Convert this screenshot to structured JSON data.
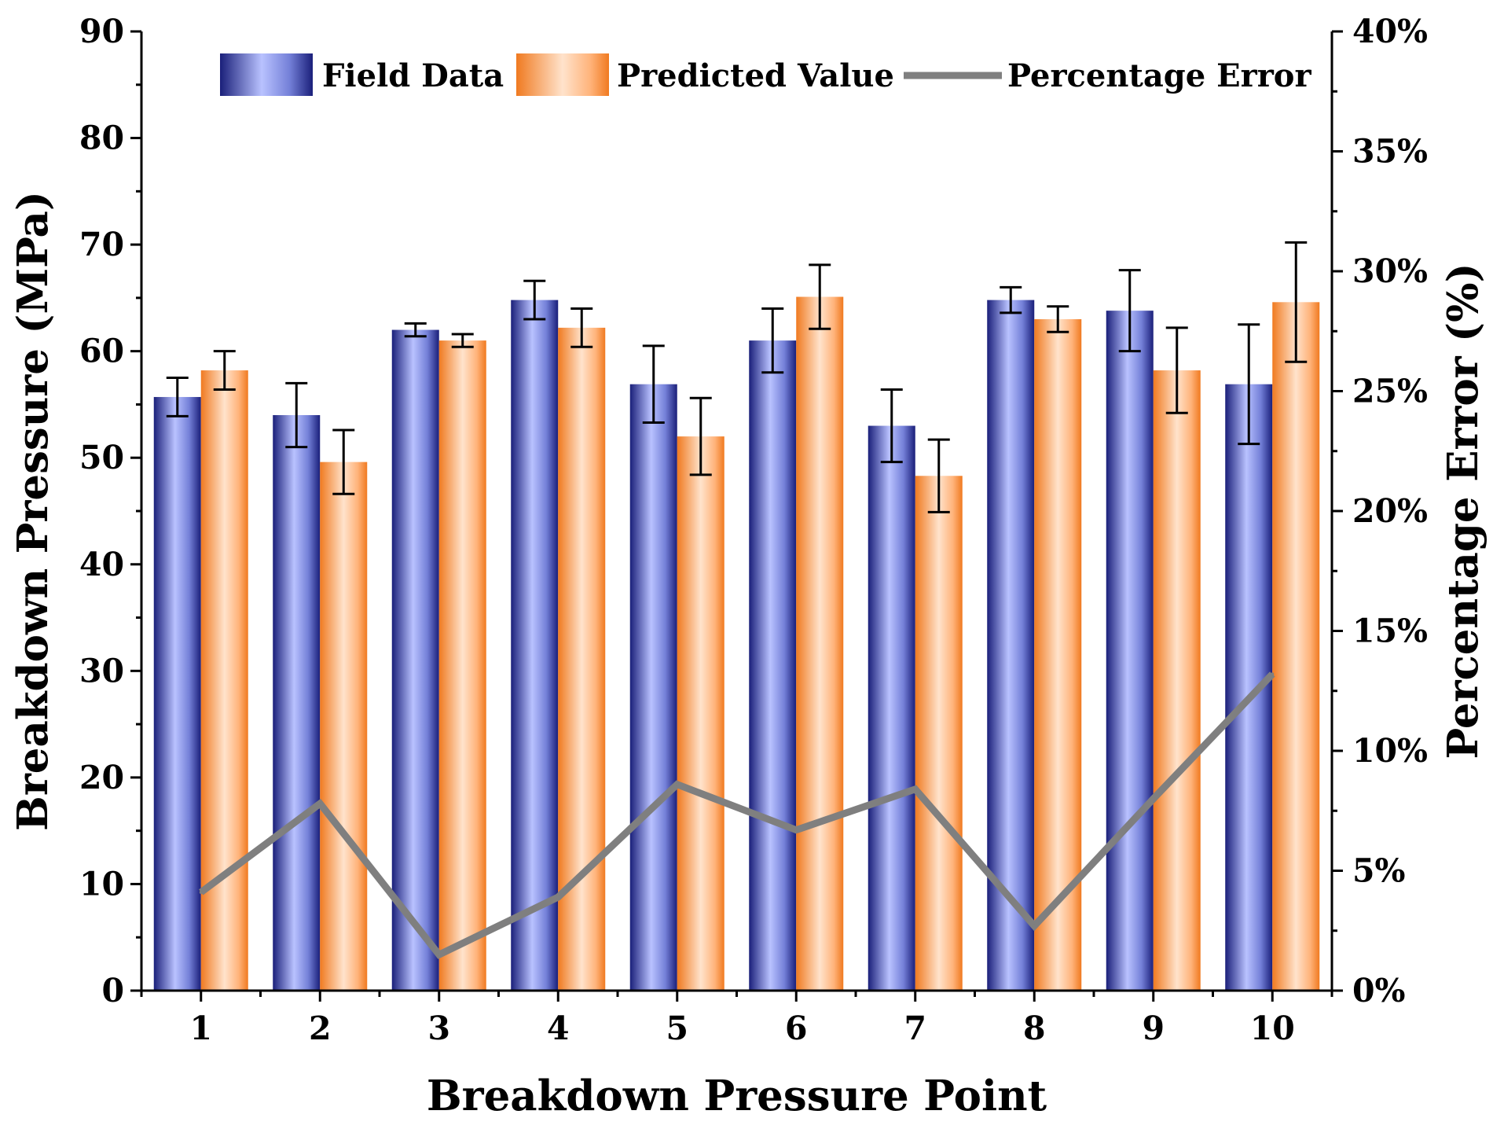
{
  "chart_data": {
    "type": "bar",
    "xlabel": "Breakdown Pressure Point",
    "ylabel": "Breakdown Pressure (MPa)",
    "y2label": "Percentage Error (%)",
    "ylim": [
      0,
      90
    ],
    "y2lim": [
      0,
      40
    ],
    "yticks": [
      "0",
      "10",
      "20",
      "30",
      "40",
      "50",
      "60",
      "70",
      "80",
      "90"
    ],
    "y2ticks": [
      "0%",
      "5%",
      "10%",
      "15%",
      "20%",
      "25%",
      "30%",
      "35%",
      "40%"
    ],
    "categories": [
      "1",
      "2",
      "3",
      "4",
      "5",
      "6",
      "7",
      "8",
      "9",
      "10"
    ],
    "series": [
      {
        "name": "Field Data",
        "kind": "bar",
        "axis": "left",
        "color": "#9aa4f0",
        "edge_color": "#1a1f7a",
        "values": [
          55.7,
          54.0,
          62.0,
          64.8,
          56.9,
          61.0,
          53.0,
          64.8,
          63.8,
          56.9
        ],
        "errors": [
          1.8,
          3.0,
          0.6,
          1.8,
          3.6,
          3.0,
          3.4,
          1.2,
          3.8,
          5.6
        ]
      },
      {
        "name": "Predicted Value",
        "kind": "bar",
        "axis": "left",
        "color": "#ffc8a0",
        "edge_color": "#f07a20",
        "values": [
          58.2,
          49.6,
          61.0,
          62.2,
          52.0,
          65.1,
          48.3,
          63.0,
          58.2,
          64.6
        ],
        "errors": [
          1.8,
          3.0,
          0.6,
          1.8,
          3.6,
          3.0,
          3.4,
          1.2,
          4.0,
          5.6
        ]
      },
      {
        "name": "Percentage Error",
        "kind": "line",
        "axis": "right",
        "color": "#7f7f7f",
        "values": [
          4.1,
          7.8,
          1.5,
          3.9,
          8.6,
          6.7,
          8.4,
          2.7,
          8.0,
          13.2
        ]
      }
    ],
    "legend": "top-right",
    "grid": false
  }
}
